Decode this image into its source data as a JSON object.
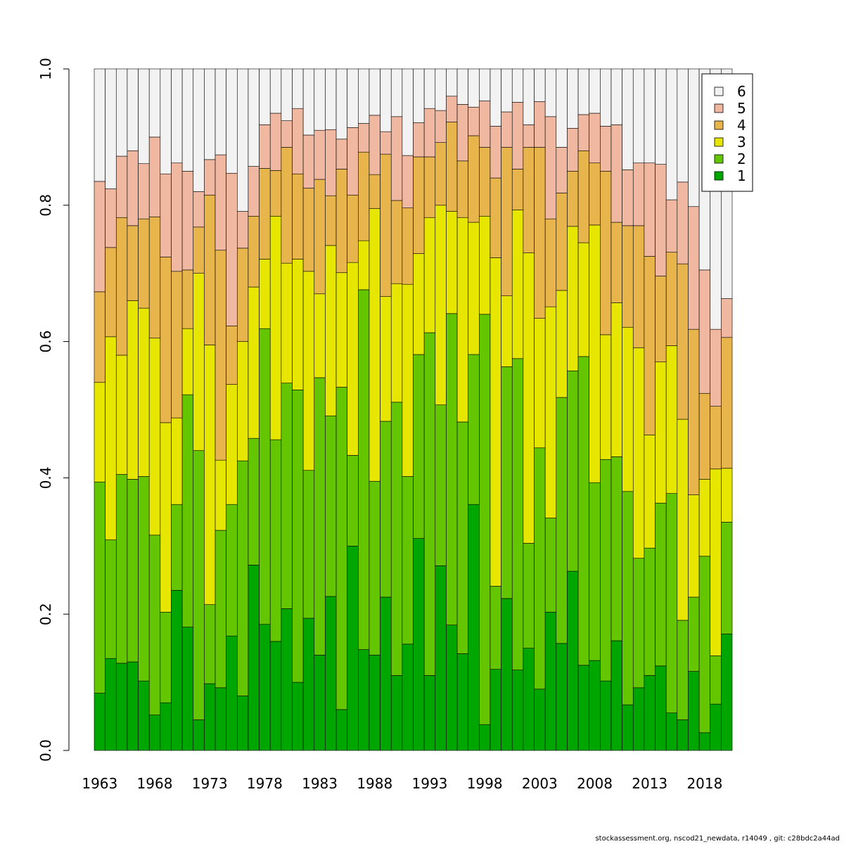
{
  "chart_data": {
    "type": "stacked_bar",
    "categories": [
      "1963",
      null,
      null,
      null,
      null,
      "1968",
      null,
      null,
      null,
      null,
      "1973",
      null,
      null,
      null,
      null,
      "1978",
      null,
      null,
      null,
      null,
      "1983",
      null,
      null,
      null,
      null,
      "1988",
      null,
      null,
      null,
      null,
      "1993",
      null,
      null,
      null,
      null,
      "1998",
      null,
      null,
      null,
      null,
      "2003",
      null,
      null,
      null,
      null,
      "2008",
      null,
      null,
      null,
      null,
      "2013",
      null,
      null,
      null,
      null,
      "2018",
      null,
      null
    ],
    "series": [
      {
        "name": "1",
        "color": "#00a600",
        "values": [
          0.084,
          0.135,
          0.128,
          0.13,
          0.102,
          0.052,
          0.07,
          0.235,
          0.181,
          0.045,
          0.098,
          0.092,
          0.168,
          0.08,
          0.272,
          0.185,
          0.16,
          0.208,
          0.1,
          0.194,
          0.14,
          0.226,
          0.06,
          0.3,
          0.148,
          0.14,
          0.225,
          0.11,
          0.156,
          0.311,
          0.11,
          0.271,
          0.184,
          0.142,
          0.361,
          0.038,
          0.119,
          0.223,
          0.118,
          0.15,
          0.09,
          0.203,
          0.157,
          0.263,
          0.125,
          0.132,
          0.102,
          0.161,
          0.067,
          0.092,
          0.11,
          0.124,
          0.055,
          0.045,
          0.116,
          0.026,
          0.068,
          0.171
        ]
      },
      {
        "name": "2",
        "color": "#63c600",
        "values": [
          0.31,
          0.174,
          0.277,
          0.268,
          0.3,
          0.264,
          0.133,
          0.126,
          0.341,
          0.395,
          0.116,
          0.231,
          0.193,
          0.345,
          0.186,
          0.434,
          0.296,
          0.331,
          0.429,
          0.217,
          0.407,
          0.265,
          0.473,
          0.133,
          0.528,
          0.255,
          0.258,
          0.401,
          0.246,
          0.27,
          0.503,
          0.236,
          0.457,
          0.34,
          0.22,
          0.602,
          0.122,
          0.34,
          0.457,
          0.154,
          0.354,
          0.138,
          0.361,
          0.294,
          0.453,
          0.261,
          0.325,
          0.27,
          0.313,
          0.19,
          0.187,
          0.239,
          0.322,
          0.146,
          0.109,
          0.259,
          0.071,
          0.164
        ]
      },
      {
        "name": "3",
        "color": "#e6e600",
        "values": [
          0.146,
          0.298,
          0.175,
          0.262,
          0.247,
          0.289,
          0.278,
          0.127,
          0.097,
          0.26,
          0.381,
          0.103,
          0.176,
          0.175,
          0.222,
          0.102,
          0.328,
          0.176,
          0.192,
          0.292,
          0.123,
          0.25,
          0.168,
          0.283,
          0.072,
          0.4,
          0.183,
          0.174,
          0.282,
          0.148,
          0.169,
          0.293,
          0.15,
          0.3,
          0.194,
          0.144,
          0.482,
          0.104,
          0.218,
          0.426,
          0.19,
          0.31,
          0.157,
          0.212,
          0.167,
          0.378,
          0.183,
          0.226,
          0.241,
          0.309,
          0.166,
          0.207,
          0.217,
          0.295,
          0.15,
          0.113,
          0.274,
          0.079
        ]
      },
      {
        "name": "4",
        "color": "#e8b44c",
        "values": [
          0.133,
          0.131,
          0.202,
          0.11,
          0.131,
          0.178,
          0.243,
          0.215,
          0.086,
          0.068,
          0.22,
          0.308,
          0.086,
          0.137,
          0.104,
          0.133,
          0.067,
          0.17,
          0.125,
          0.122,
          0.168,
          0.073,
          0.152,
          0.099,
          0.13,
          0.05,
          0.209,
          0.122,
          0.112,
          0.142,
          0.089,
          0.092,
          0.131,
          0.083,
          0.127,
          0.101,
          0.117,
          0.218,
          0.06,
          0.155,
          0.251,
          0.129,
          0.143,
          0.081,
          0.135,
          0.091,
          0.24,
          0.118,
          0.149,
          0.179,
          0.262,
          0.126,
          0.137,
          0.228,
          0.243,
          0.126,
          0.092,
          0.192
        ]
      },
      {
        "name": "5",
        "color": "#f0b8a0",
        "values": [
          0.162,
          0.086,
          0.09,
          0.11,
          0.081,
          0.117,
          0.122,
          0.159,
          0.145,
          0.052,
          0.052,
          0.14,
          0.224,
          0.054,
          0.073,
          0.064,
          0.084,
          0.039,
          0.096,
          0.078,
          0.072,
          0.097,
          0.044,
          0.099,
          0.042,
          0.087,
          0.033,
          0.123,
          0.077,
          0.05,
          0.071,
          0.047,
          0.038,
          0.083,
          0.042,
          0.068,
          0.076,
          0.052,
          0.098,
          0.033,
          0.067,
          0.15,
          0.067,
          0.063,
          0.053,
          0.073,
          0.066,
          0.143,
          0.082,
          0.092,
          0.137,
          0.164,
          0.077,
          0.12,
          0.18,
          0.181,
          0.113,
          0.057
        ]
      },
      {
        "name": "6",
        "color": "#f2f2f2",
        "values": [
          0.165,
          0.176,
          0.128,
          0.12,
          0.139,
          0.1,
          0.154,
          0.138,
          0.15,
          0.18,
          0.133,
          0.126,
          0.153,
          0.209,
          0.143,
          0.082,
          0.065,
          0.076,
          0.058,
          0.097,
          0.09,
          0.089,
          0.103,
          0.086,
          0.08,
          0.068,
          0.092,
          0.07,
          0.127,
          0.079,
          0.058,
          0.061,
          0.04,
          0.052,
          0.056,
          0.047,
          0.084,
          0.063,
          0.049,
          0.082,
          0.048,
          0.07,
          0.115,
          0.087,
          0.067,
          0.065,
          0.084,
          0.082,
          0.148,
          0.138,
          0.138,
          0.14,
          0.192,
          0.166,
          0.202,
          0.295,
          0.382,
          0.337
        ]
      }
    ],
    "ylim": [
      0,
      1
    ],
    "yticks": [
      {
        "value": 0,
        "label": "0.0"
      },
      0.2,
      0.4,
      0.6,
      0.8,
      {
        "value": 1,
        "label": "1.0"
      }
    ],
    "legend": "topright",
    "footnote": "stockassessment.org, nscod21_newdata, r14049 , git: c28bdc2a44ad"
  }
}
